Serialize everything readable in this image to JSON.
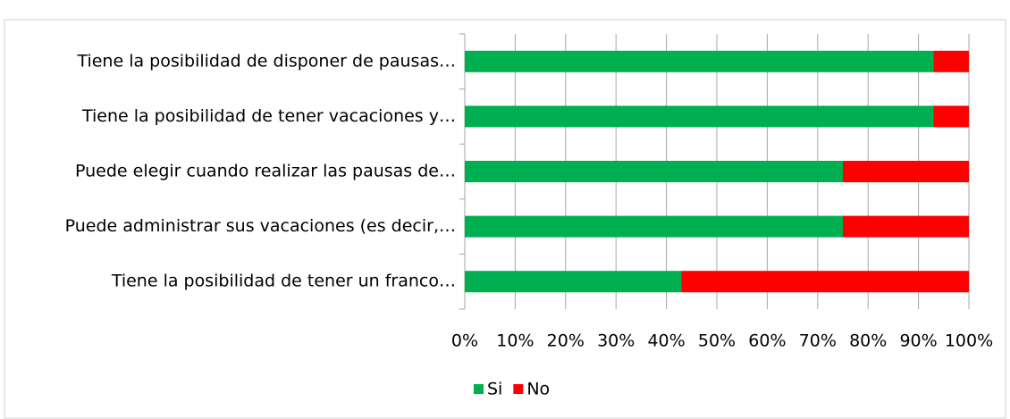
{
  "chart_data": {
    "type": "stacked-bar-horizontal",
    "categories": [
      "Tiene la posibilidad de disponer de pausas…",
      "Tiene la posibilidad de tener vacaciones y…",
      "Puede elegir cuando realizar las pausas de…",
      "Puede administrar sus vacaciones (es decir,…",
      "Tiene la posibilidad de tener un franco…"
    ],
    "series": [
      {
        "name": "Si",
        "color": "#00b050",
        "values": [
          93,
          93,
          75,
          75,
          43
        ]
      },
      {
        "name": "No",
        "color": "#ff0000",
        "values": [
          7,
          7,
          25,
          25,
          57
        ]
      }
    ],
    "xlim": [
      0,
      100
    ],
    "xticks": [
      {
        "value": 0,
        "label": "0%"
      },
      {
        "value": 10,
        "label": "10%"
      },
      {
        "value": 20,
        "label": "20%"
      },
      {
        "value": 30,
        "label": "30%"
      },
      {
        "value": 40,
        "label": "40%"
      },
      {
        "value": 50,
        "label": "50%"
      },
      {
        "value": 60,
        "label": "60%"
      },
      {
        "value": 70,
        "label": "70%"
      },
      {
        "value": 80,
        "label": "80%"
      },
      {
        "value": 90,
        "label": "90%"
      },
      {
        "value": 100,
        "label": "100%"
      }
    ],
    "grid": true,
    "legend": "bottom"
  }
}
